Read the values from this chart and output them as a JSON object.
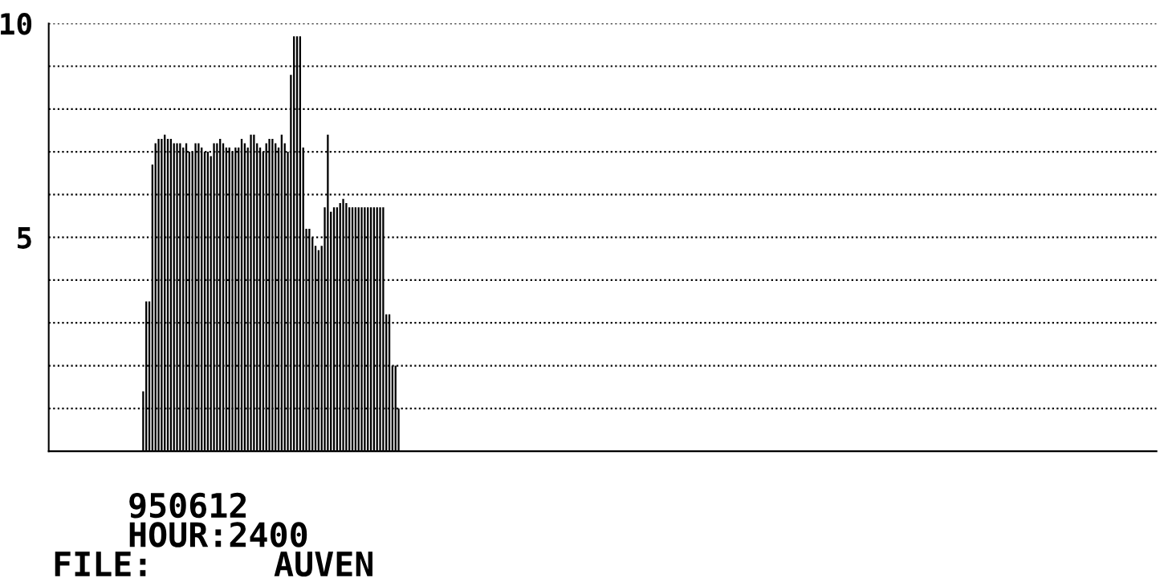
{
  "chart_data": {
    "type": "bar",
    "categories": [
      null,
      null,
      null,
      null,
      null,
      null,
      null,
      null,
      null,
      null,
      null,
      null,
      null,
      null,
      null,
      null,
      null,
      null,
      null,
      null,
      null,
      null,
      null,
      null,
      null,
      null,
      null,
      null,
      null,
      null,
      null,
      null,
      null,
      null,
      null,
      null,
      null,
      null,
      null,
      null,
      null,
      null,
      null,
      null,
      null,
      null,
      null,
      null,
      null,
      null,
      null,
      null,
      null,
      null,
      null,
      null,
      null,
      null,
      null,
      null,
      null,
      null,
      null,
      null,
      null,
      null,
      null,
      null,
      null,
      null,
      null,
      null,
      null,
      null,
      null,
      null,
      null,
      null,
      null,
      null,
      null,
      null,
      null,
      null
    ],
    "values": [
      1.4,
      3.5,
      3.5,
      6.7,
      7.2,
      7.3,
      7.3,
      7.4,
      7.3,
      7.3,
      7.2,
      7.2,
      7.2,
      7.1,
      7.2,
      7.0,
      7.0,
      7.2,
      7.2,
      7.1,
      7.0,
      7.0,
      6.9,
      7.2,
      7.2,
      7.3,
      7.2,
      7.1,
      7.1,
      7.0,
      7.1,
      7.1,
      7.3,
      7.2,
      7.1,
      7.4,
      7.4,
      7.2,
      7.1,
      7.0,
      7.2,
      7.3,
      7.3,
      7.2,
      7.1,
      7.4,
      7.2,
      7.0,
      8.8,
      9.7,
      9.7,
      9.7,
      7.1,
      5.2,
      5.2,
      5.0,
      4.8,
      4.7,
      4.8,
      5.7,
      7.4,
      5.6,
      5.7,
      5.7,
      5.8,
      5.9,
      5.8,
      5.7,
      5.7,
      5.7,
      5.7,
      5.7,
      5.7,
      5.7,
      5.7,
      5.7,
      5.7,
      5.7,
      5.7,
      3.2,
      3.2,
      2.0,
      2.0,
      1.0
    ],
    "color": "#000000",
    "ylim": [
      0,
      10
    ],
    "yticks": [
      {
        "value": 0,
        "label": null
      },
      {
        "value": 1,
        "label": null
      },
      {
        "value": 2,
        "label": null
      },
      {
        "value": 3,
        "label": null
      },
      {
        "value": 4,
        "label": null
      },
      {
        "value": 5,
        "label": "5"
      },
      {
        "value": 6,
        "label": null
      },
      {
        "value": 7,
        "label": null
      },
      {
        "value": 8,
        "label": null
      },
      {
        "value": 9,
        "label": null
      },
      {
        "value": 10,
        "label": "10"
      }
    ],
    "tick_labels": "y",
    "grid": "y",
    "annotations": [
      "950612",
      "HOUR:2400",
      "FILE:      AUVEN"
    ]
  }
}
